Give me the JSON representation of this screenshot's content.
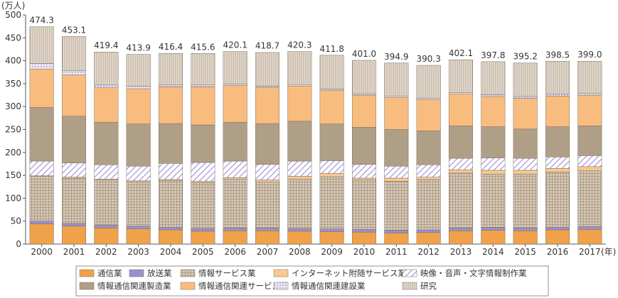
{
  "chart_data": {
    "type": "bar",
    "stacked": true,
    "ylabel": "(万人)",
    "xunit": "(年)",
    "ylim": [
      0,
      500
    ],
    "yticks": [
      0,
      50,
      100,
      150,
      200,
      250,
      300,
      350,
      400,
      450,
      500
    ],
    "grid": false,
    "legend_position": "bottom",
    "categories": [
      "2000",
      "2001",
      "2002",
      "2003",
      "2004",
      "2005",
      "2006",
      "2007",
      "2008",
      "2009",
      "2010",
      "2011",
      "2012",
      "2013",
      "2014",
      "2015",
      "2016",
      "2017"
    ],
    "totals": [
      "474.3",
      "453.1",
      "419.4",
      "413.9",
      "416.4",
      "415.6",
      "420.1",
      "418.7",
      "420.3",
      "411.8",
      "401.0",
      "394.9",
      "390.3",
      "402.1",
      "397.8",
      "395.2",
      "398.5",
      "399.0"
    ],
    "series": [
      {
        "name": "通信業",
        "color": "#f0a24a",
        "pattern": "solid",
        "values": [
          44,
          39,
          35,
          33,
          31,
          28,
          29,
          29,
          28,
          27,
          26,
          24,
          25,
          29,
          30,
          29,
          31,
          32
        ]
      },
      {
        "name": "放送業",
        "color": "#9b8fd0",
        "pattern": "solid",
        "values": [
          6,
          6,
          6,
          6,
          6,
          6,
          6,
          6,
          6,
          6,
          6,
          6,
          6,
          6,
          6,
          6,
          6,
          6
        ]
      },
      {
        "name": "情報サービス業",
        "color": "#bfa98f",
        "pattern": "grid",
        "values": [
          98,
          99,
          99,
          97,
          102,
          100,
          107,
          101,
          108,
          114,
          108,
          107,
          110,
          120,
          117,
          118,
          120,
          122
        ]
      },
      {
        "name": "インターネット附随サービス業",
        "color": "#fbc98e",
        "pattern": "solid",
        "values": [
          1,
          2,
          2,
          2,
          2,
          3,
          3,
          4,
          6,
          7,
          4,
          7,
          5,
          7,
          8,
          8,
          8,
          9
        ]
      },
      {
        "name": "映像・音声・文字情報制作業",
        "color": "#c9c0ea",
        "pattern": "diag",
        "values": [
          32,
          31,
          31,
          32,
          35,
          41,
          36,
          34,
          33,
          28,
          30,
          26,
          27,
          25,
          27,
          26,
          25,
          24
        ]
      },
      {
        "name": "情報通信関連製造業",
        "color": "#b09f87",
        "pattern": "solid",
        "values": [
          117,
          102,
          93,
          92,
          87,
          82,
          85,
          89,
          87,
          80,
          81,
          80,
          74,
          71,
          68,
          64,
          66,
          65
        ]
      },
      {
        "name": "情報通信関連サービス業",
        "color": "#f8bd7e",
        "pattern": "solid",
        "values": [
          84,
          90,
          75,
          77,
          80,
          83,
          80,
          79,
          77,
          73,
          70,
          70,
          68,
          69,
          66,
          67,
          67,
          67
        ]
      },
      {
        "name": "情報通信関連建設業",
        "color": "#e6e1f3",
        "pattern": "dots",
        "values": [
          12,
          9,
          6,
          5,
          4,
          4,
          3,
          3,
          3,
          3,
          3,
          3,
          3,
          3,
          4,
          4,
          4,
          4
        ]
      },
      {
        "name": "研究",
        "color": "#d8cfc3",
        "pattern": "vlines",
        "values": [
          80,
          75,
          72,
          70,
          69,
          69,
          71,
          73,
          72,
          74,
          73,
          72,
          72,
          72,
          72,
          73,
          72,
          70
        ]
      }
    ]
  }
}
